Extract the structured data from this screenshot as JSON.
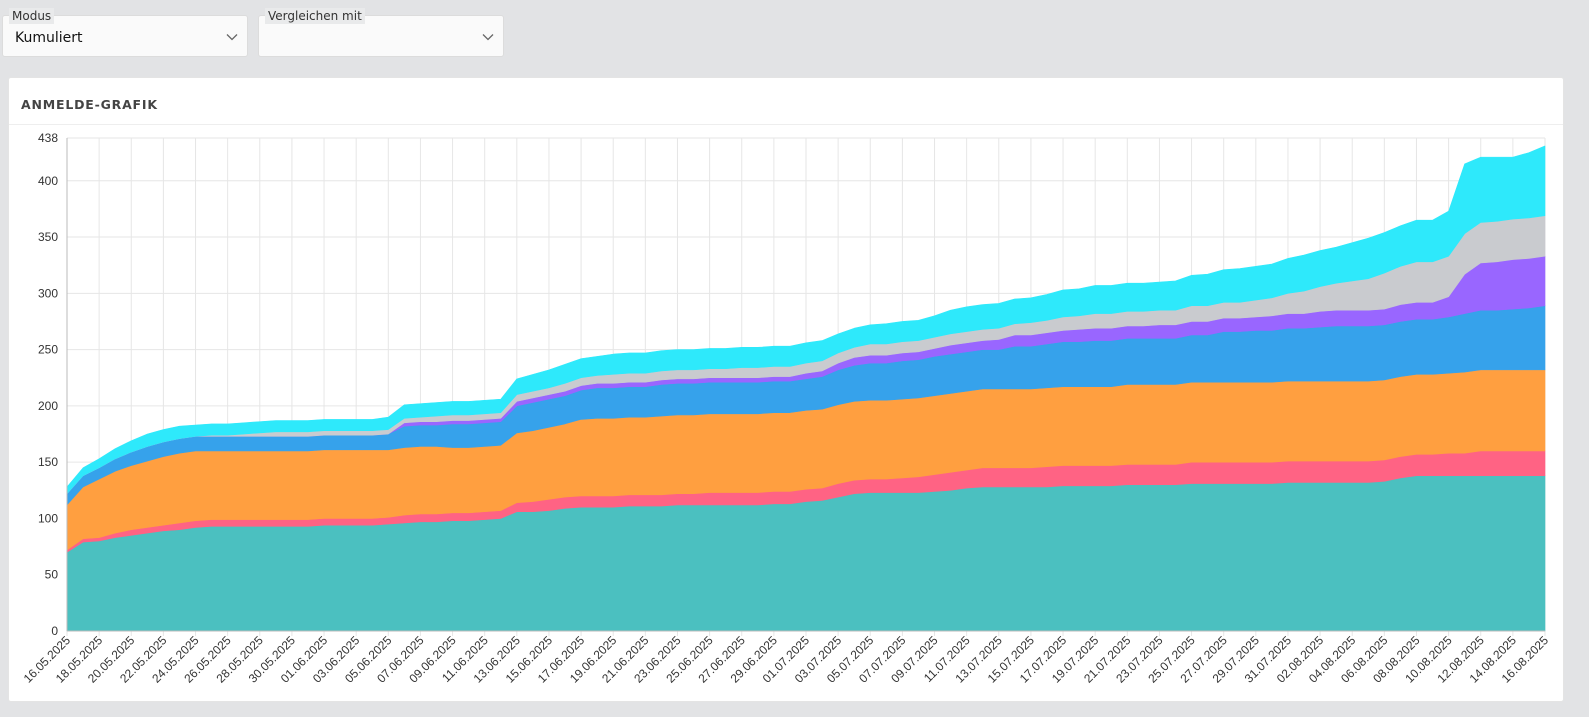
{
  "filters": {
    "mode": {
      "label": "Modus",
      "value": "Kumuliert"
    },
    "compare": {
      "label": "Vergleichen mit",
      "value": ""
    }
  },
  "card": {
    "title": "ANMELDE-GRAFIK"
  },
  "chart_data": {
    "type": "area",
    "stacked": true,
    "title": "ANMELDE-GRAFIK",
    "xlabel": "",
    "ylabel": "",
    "ylim": [
      0,
      438
    ],
    "y_ticks": [
      0,
      50,
      100,
      150,
      200,
      250,
      300,
      350,
      400,
      438
    ],
    "grid": true,
    "legend": "none",
    "x_tick_labels": [
      "16.05.2025",
      "18.05.2025",
      "20.05.2025",
      "22.05.2025",
      "24.05.2025",
      "26.05.2025",
      "28.05.2025",
      "30.05.2025",
      "01.06.2025",
      "03.06.2025",
      "05.06.2025",
      "07.06.2025",
      "09.06.2025",
      "11.06.2025",
      "13.06.2025",
      "15.06.2025",
      "17.06.2025",
      "19.06.2025",
      "21.06.2025",
      "23.06.2025",
      "25.06.2025",
      "27.06.2025",
      "29.06.2025",
      "01.07.2025",
      "03.07.2025",
      "05.07.2025",
      "07.07.2025",
      "09.07.2025",
      "11.07.2025",
      "13.07.2025",
      "15.07.2025",
      "17.07.2025",
      "19.07.2025",
      "21.07.2025",
      "23.07.2025",
      "25.07.2025",
      "27.07.2025",
      "29.07.2025",
      "31.07.2025",
      "02.08.2025",
      "04.08.2025",
      "06.08.2025",
      "08.08.2025",
      "10.08.2025",
      "12.08.2025",
      "14.08.2025",
      "16.08.2025"
    ],
    "x": [
      "16.05.2025",
      "17.05.2025",
      "18.05.2025",
      "19.05.2025",
      "20.05.2025",
      "21.05.2025",
      "22.05.2025",
      "23.05.2025",
      "24.05.2025",
      "25.05.2025",
      "26.05.2025",
      "27.05.2025",
      "28.05.2025",
      "29.05.2025",
      "30.05.2025",
      "31.05.2025",
      "01.06.2025",
      "02.06.2025",
      "03.06.2025",
      "04.06.2025",
      "05.06.2025",
      "06.06.2025",
      "07.06.2025",
      "08.06.2025",
      "09.06.2025",
      "10.06.2025",
      "11.06.2025",
      "12.06.2025",
      "13.06.2025",
      "14.06.2025",
      "15.06.2025",
      "16.06.2025",
      "17.06.2025",
      "18.06.2025",
      "19.06.2025",
      "20.06.2025",
      "21.06.2025",
      "22.06.2025",
      "23.06.2025",
      "24.06.2025",
      "25.06.2025",
      "26.06.2025",
      "27.06.2025",
      "28.06.2025",
      "29.06.2025",
      "30.06.2025",
      "01.07.2025",
      "02.07.2025",
      "03.07.2025",
      "04.07.2025",
      "05.07.2025",
      "06.07.2025",
      "07.07.2025",
      "08.07.2025",
      "09.07.2025",
      "10.07.2025",
      "11.07.2025",
      "12.07.2025",
      "13.07.2025",
      "14.07.2025",
      "15.07.2025",
      "16.07.2025",
      "17.07.2025",
      "18.07.2025",
      "19.07.2025",
      "20.07.2025",
      "21.07.2025",
      "22.07.2025",
      "23.07.2025",
      "24.07.2025",
      "25.07.2025",
      "26.07.2025",
      "27.07.2025",
      "28.07.2025",
      "29.07.2025",
      "30.07.2025",
      "31.07.2025",
      "01.08.2025",
      "02.08.2025",
      "03.08.2025",
      "04.08.2025",
      "05.08.2025",
      "06.08.2025",
      "07.08.2025",
      "08.08.2025",
      "09.08.2025",
      "10.08.2025",
      "11.08.2025",
      "12.08.2025",
      "13.08.2025",
      "14.08.2025",
      "15.08.2025",
      "16.08.2025"
    ],
    "series": [
      {
        "color": "#4bc0c0",
        "values": [
          70,
          79,
          80,
          83,
          85,
          87,
          89,
          90,
          92,
          93,
          93,
          93,
          93,
          93,
          93,
          93,
          94,
          94,
          94,
          94,
          95,
          96,
          97,
          97,
          98,
          98,
          99,
          100,
          106,
          106,
          107,
          109,
          110,
          110,
          110,
          111,
          111,
          111,
          112,
          112,
          112,
          112,
          112,
          112,
          113,
          113,
          115,
          116,
          119,
          122,
          123,
          123,
          123,
          123,
          124,
          125,
          127,
          128,
          128,
          128,
          128,
          128,
          129,
          129,
          129,
          129,
          130,
          130,
          130,
          130,
          131,
          131,
          131,
          131,
          131,
          131,
          132,
          132,
          132,
          132,
          132,
          132,
          133,
          136,
          138,
          138,
          138,
          138,
          138,
          138,
          138,
          138,
          138
        ]
      },
      {
        "color": "#ff6384",
        "values": [
          2,
          3,
          3,
          4,
          5,
          5,
          5,
          6,
          6,
          6,
          6,
          6,
          6,
          6,
          6,
          6,
          6,
          6,
          6,
          6,
          6,
          7,
          7,
          7,
          7,
          7,
          7,
          7,
          8,
          9,
          10,
          10,
          10,
          10,
          10,
          10,
          10,
          10,
          10,
          10,
          11,
          11,
          11,
          11,
          11,
          11,
          11,
          11,
          12,
          12,
          12,
          12,
          13,
          14,
          15,
          16,
          16,
          17,
          17,
          17,
          17,
          18,
          18,
          18,
          18,
          18,
          18,
          18,
          18,
          18,
          19,
          19,
          19,
          19,
          19,
          19,
          19,
          19,
          19,
          19,
          19,
          19,
          19,
          19,
          19,
          19,
          20,
          20,
          22,
          22,
          22,
          22,
          22
        ]
      },
      {
        "color": "#ff9f40",
        "values": [
          40,
          46,
          52,
          55,
          57,
          59,
          61,
          62,
          62,
          61,
          61,
          61,
          61,
          61,
          61,
          61,
          61,
          61,
          61,
          61,
          60,
          60,
          60,
          60,
          58,
          58,
          58,
          58,
          62,
          63,
          64,
          65,
          68,
          69,
          69,
          69,
          69,
          70,
          70,
          70,
          70,
          70,
          70,
          70,
          70,
          70,
          70,
          70,
          70,
          70,
          70,
          70,
          70,
          70,
          70,
          70,
          70,
          70,
          70,
          70,
          70,
          70,
          70,
          70,
          70,
          70,
          71,
          71,
          71,
          71,
          71,
          71,
          71,
          71,
          71,
          71,
          71,
          71,
          71,
          71,
          71,
          71,
          71,
          71,
          71,
          71,
          71,
          72,
          72,
          72,
          72,
          72,
          72
        ]
      },
      {
        "color": "#36a2eb",
        "values": [
          10,
          10,
          10,
          11,
          12,
          13,
          13,
          13,
          13,
          13,
          13,
          13,
          13,
          13,
          13,
          13,
          13,
          13,
          13,
          13,
          14,
          19,
          19,
          19,
          21,
          21,
          21,
          21,
          24,
          25,
          25,
          25,
          26,
          27,
          27,
          27,
          27,
          28,
          28,
          28,
          28,
          28,
          28,
          28,
          28,
          28,
          28,
          29,
          31,
          32,
          33,
          33,
          34,
          34,
          35,
          35,
          35,
          35,
          35,
          38,
          38,
          39,
          40,
          40,
          41,
          41,
          41,
          41,
          41,
          41,
          42,
          42,
          45,
          45,
          46,
          46,
          47,
          47,
          48,
          49,
          49,
          49,
          49,
          49,
          49,
          49,
          50,
          52,
          53,
          53,
          54,
          55,
          57
        ]
      },
      {
        "color": "#9966ff",
        "values": [
          0,
          0,
          0,
          0,
          0,
          0,
          0,
          0,
          0,
          0,
          0,
          0,
          0,
          0,
          0,
          0,
          0,
          0,
          0,
          0,
          0,
          3,
          3,
          3,
          3,
          3,
          3,
          3,
          4,
          4,
          4,
          4,
          4,
          4,
          4,
          4,
          4,
          4,
          4,
          4,
          4,
          4,
          4,
          4,
          4,
          4,
          5,
          5,
          6,
          7,
          7,
          7,
          7,
          7,
          7,
          8,
          8,
          8,
          9,
          10,
          10,
          10,
          10,
          11,
          11,
          11,
          11,
          11,
          12,
          12,
          12,
          12,
          12,
          12,
          12,
          13,
          13,
          13,
          14,
          14,
          14,
          14,
          14,
          15,
          15,
          15,
          18,
          35,
          42,
          43,
          44,
          44,
          44
        ]
      },
      {
        "color": "#c9cbcf",
        "values": [
          0,
          0,
          0,
          0,
          0,
          0,
          0,
          0,
          0,
          1,
          1,
          2,
          3,
          4,
          4,
          4,
          4,
          4,
          4,
          4,
          4,
          4,
          4,
          5,
          5,
          5,
          5,
          5,
          6,
          6,
          6,
          7,
          7,
          7,
          8,
          8,
          8,
          8,
          8,
          8,
          8,
          8,
          9,
          9,
          9,
          9,
          9,
          9,
          9,
          9,
          10,
          10,
          10,
          10,
          10,
          10,
          10,
          10,
          10,
          10,
          11,
          11,
          12,
          12,
          13,
          13,
          13,
          13,
          13,
          13,
          14,
          14,
          14,
          14,
          15,
          16,
          18,
          20,
          22,
          24,
          26,
          28,
          32,
          34,
          36,
          36,
          36,
          36,
          36,
          36,
          36,
          36,
          36
        ]
      },
      {
        "color": "#2ee9fb",
        "values": [
          6,
          7,
          8,
          9,
          10,
          11,
          11,
          11,
          10,
          10,
          10,
          10,
          10,
          10,
          10,
          10,
          10,
          10,
          10,
          10,
          11,
          12,
          12,
          12,
          12,
          12,
          12,
          12,
          14,
          15,
          16,
          17,
          17,
          17,
          18,
          18,
          18,
          18,
          18,
          18,
          18,
          18,
          18,
          18,
          18,
          18,
          18,
          18,
          17,
          17,
          17,
          18,
          18,
          18,
          19,
          21,
          22,
          22,
          22,
          22,
          22,
          23,
          24,
          24,
          25,
          25,
          25,
          25,
          25,
          26,
          27,
          28,
          29,
          30,
          30,
          30,
          31,
          32,
          32,
          32,
          34,
          36,
          36,
          36,
          37,
          37,
          40,
          62,
          58,
          57,
          55,
          58,
          62
        ]
      }
    ]
  }
}
